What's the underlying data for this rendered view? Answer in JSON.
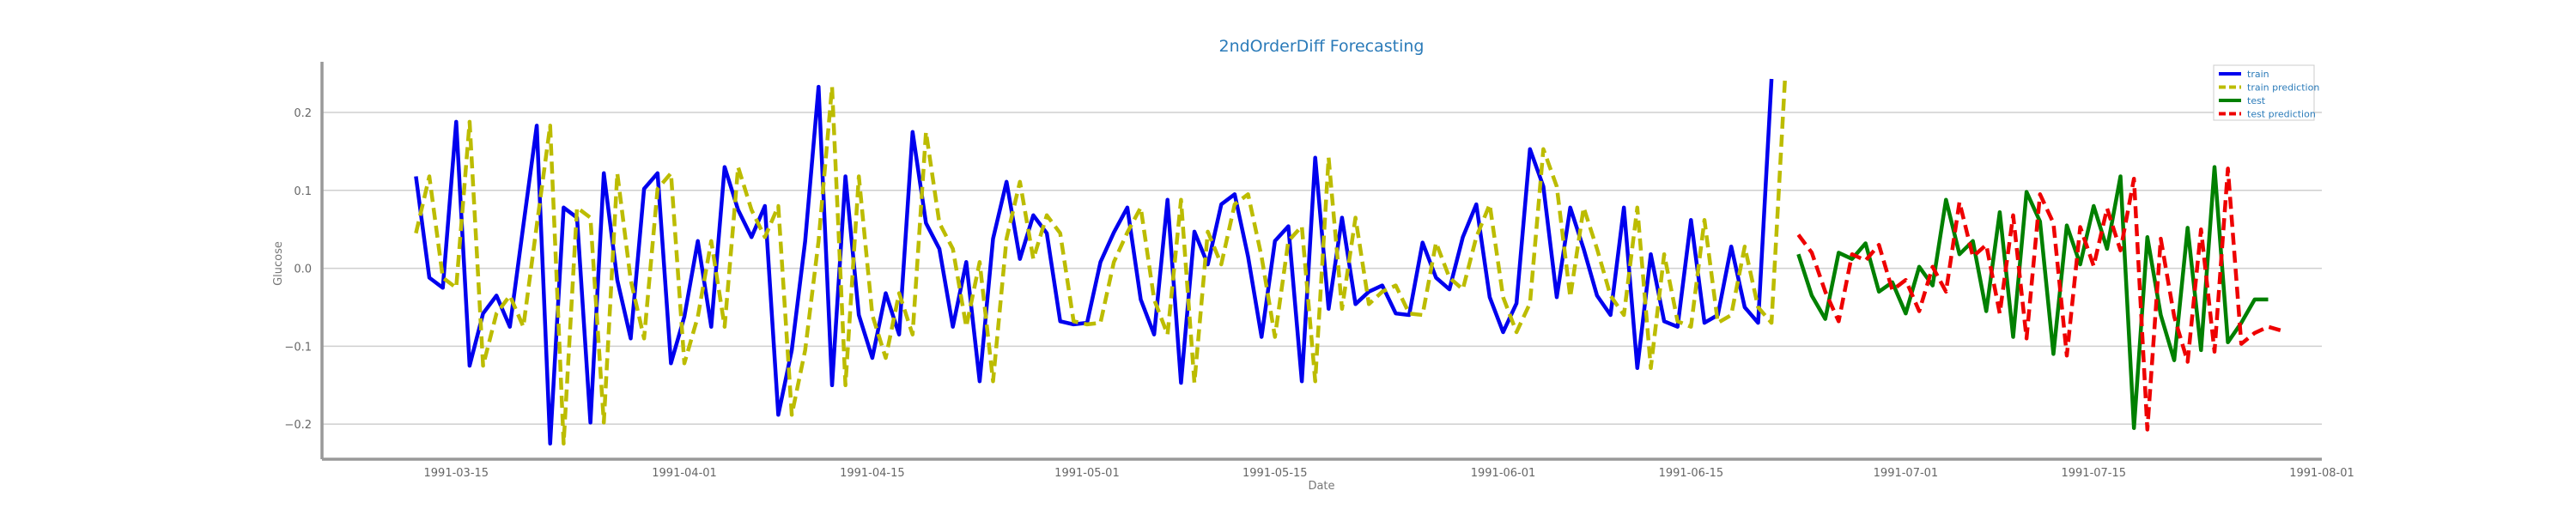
{
  "chart_data": {
    "type": "line",
    "title": "2ndOrderDiff Forecasting",
    "xlabel": "Date",
    "ylabel": "Glucose",
    "xlim": [
      "1991-03-05",
      "1991-08-01"
    ],
    "ylim": [
      -0.245,
      0.265
    ],
    "yticks": [
      -0.2,
      -0.1,
      0.0,
      0.1,
      0.2
    ],
    "ytick_labels": [
      "−0.2",
      "−0.1",
      "0.0",
      "0.1",
      "0.2"
    ],
    "xticks": [
      "1991-03-15",
      "1991-04-01",
      "1991-04-15",
      "1991-05-01",
      "1991-05-15",
      "1991-06-01",
      "1991-06-15",
      "1991-07-01",
      "1991-07-15",
      "1991-08-01"
    ],
    "grid": "horizontal",
    "legend_position": "top-right",
    "series": [
      {
        "name": "train",
        "color": "#0000ee",
        "style": "solid",
        "x": [
          "1991-03-12",
          "1991-03-13",
          "1991-03-14",
          "1991-03-15",
          "1991-03-16",
          "1991-03-17",
          "1991-03-18",
          "1991-03-19",
          "1991-03-20",
          "1991-03-21",
          "1991-03-22",
          "1991-03-23",
          "1991-03-24",
          "1991-03-25",
          "1991-03-26",
          "1991-03-27",
          "1991-03-28",
          "1991-03-29",
          "1991-03-30",
          "1991-03-31",
          "1991-04-01",
          "1991-04-02",
          "1991-04-03",
          "1991-04-04",
          "1991-04-05",
          "1991-04-06",
          "1991-04-07",
          "1991-04-08",
          "1991-04-09",
          "1991-04-10",
          "1991-04-11",
          "1991-04-12",
          "1991-04-13",
          "1991-04-14",
          "1991-04-15",
          "1991-04-16",
          "1991-04-17",
          "1991-04-18",
          "1991-04-19",
          "1991-04-20",
          "1991-04-21",
          "1991-04-22",
          "1991-04-23",
          "1991-04-24",
          "1991-04-25",
          "1991-04-26",
          "1991-04-27",
          "1991-04-28",
          "1991-04-29",
          "1991-04-30",
          "1991-05-01",
          "1991-05-02",
          "1991-05-03",
          "1991-05-04",
          "1991-05-05",
          "1991-05-06",
          "1991-05-07",
          "1991-05-08",
          "1991-05-09",
          "1991-05-10",
          "1991-05-11",
          "1991-05-12",
          "1991-05-13",
          "1991-05-14",
          "1991-05-15",
          "1991-05-16",
          "1991-05-17",
          "1991-05-18",
          "1991-05-19",
          "1991-05-20",
          "1991-05-21",
          "1991-05-22",
          "1991-05-23",
          "1991-05-24",
          "1991-05-25",
          "1991-05-26",
          "1991-05-27",
          "1991-05-28",
          "1991-05-29",
          "1991-05-30",
          "1991-05-31",
          "1991-06-01",
          "1991-06-02",
          "1991-06-03",
          "1991-06-04",
          "1991-06-05",
          "1991-06-06",
          "1991-06-07",
          "1991-06-08",
          "1991-06-09",
          "1991-06-10",
          "1991-06-11",
          "1991-06-12",
          "1991-06-13",
          "1991-06-14",
          "1991-06-15",
          "1991-06-16",
          "1991-06-17",
          "1991-06-18",
          "1991-06-19",
          "1991-06-20",
          "1991-06-21"
        ],
        "y": [
          0.118,
          -0.012,
          -0.025,
          0.188,
          -0.125,
          -0.058,
          -0.035,
          -0.075,
          0.055,
          0.183,
          -0.225,
          0.078,
          0.065,
          -0.198,
          0.122,
          -0.015,
          -0.09,
          0.102,
          0.122,
          -0.122,
          -0.062,
          0.035,
          -0.075,
          0.13,
          0.075,
          0.04,
          0.08,
          -0.188,
          -0.105,
          0.035,
          0.233,
          -0.15,
          0.118,
          -0.06,
          -0.115,
          -0.032,
          -0.085,
          0.175,
          0.058,
          0.025,
          -0.075,
          0.008,
          -0.145,
          0.038,
          0.111,
          0.012,
          0.068,
          0.045,
          -0.068,
          -0.072,
          -0.07,
          0.008,
          0.046,
          0.078,
          -0.04,
          -0.085,
          0.088,
          -0.147,
          0.047,
          0.005,
          0.082,
          0.095,
          0.015,
          -0.088,
          0.035,
          0.054,
          -0.145,
          0.142,
          -0.052,
          0.065,
          -0.046,
          -0.03,
          -0.022,
          -0.058,
          -0.06,
          0.033,
          -0.012,
          -0.027,
          0.04,
          0.082,
          -0.037,
          -0.082,
          -0.045,
          0.153,
          0.105,
          -0.037,
          0.078,
          0.025,
          -0.035,
          -0.06,
          0.078,
          -0.128,
          0.018,
          -0.068,
          -0.075,
          0.062,
          -0.07,
          -0.06,
          0.028,
          -0.05,
          -0.07,
          0.243
        ]
      },
      {
        "name": "train prediction",
        "color": "#bcbc00",
        "style": "dashed",
        "x": [
          "1991-03-12",
          "1991-03-13",
          "1991-03-14",
          "1991-03-15",
          "1991-03-16",
          "1991-03-17",
          "1991-03-18",
          "1991-03-19",
          "1991-03-20",
          "1991-03-21",
          "1991-03-22",
          "1991-03-23",
          "1991-03-24",
          "1991-03-25",
          "1991-03-26",
          "1991-03-27",
          "1991-03-28",
          "1991-03-29",
          "1991-03-30",
          "1991-03-31",
          "1991-04-01",
          "1991-04-02",
          "1991-04-03",
          "1991-04-04",
          "1991-04-05",
          "1991-04-06",
          "1991-04-07",
          "1991-04-08",
          "1991-04-09",
          "1991-04-10",
          "1991-04-11",
          "1991-04-12",
          "1991-04-13",
          "1991-04-14",
          "1991-04-15",
          "1991-04-16",
          "1991-04-17",
          "1991-04-18",
          "1991-04-19",
          "1991-04-20",
          "1991-04-21",
          "1991-04-22",
          "1991-04-23",
          "1991-04-24",
          "1991-04-25",
          "1991-04-26",
          "1991-04-27",
          "1991-04-28",
          "1991-04-29",
          "1991-04-30",
          "1991-05-01",
          "1991-05-02",
          "1991-05-03",
          "1991-05-04",
          "1991-05-05",
          "1991-05-06",
          "1991-05-07",
          "1991-05-08",
          "1991-05-09",
          "1991-05-10",
          "1991-05-11",
          "1991-05-12",
          "1991-05-13",
          "1991-05-14",
          "1991-05-15",
          "1991-05-16",
          "1991-05-17",
          "1991-05-18",
          "1991-05-19",
          "1991-05-20",
          "1991-05-21",
          "1991-05-22",
          "1991-05-23",
          "1991-05-24",
          "1991-05-25",
          "1991-05-26",
          "1991-05-27",
          "1991-05-28",
          "1991-05-29",
          "1991-05-30",
          "1991-05-31",
          "1991-06-01",
          "1991-06-02",
          "1991-06-03",
          "1991-06-04",
          "1991-06-05",
          "1991-06-06",
          "1991-06-07",
          "1991-06-08",
          "1991-06-09",
          "1991-06-10",
          "1991-06-11",
          "1991-06-12",
          "1991-06-13",
          "1991-06-14",
          "1991-06-15",
          "1991-06-16",
          "1991-06-17",
          "1991-06-18",
          "1991-06-19",
          "1991-06-20",
          "1991-06-21",
          "1991-06-22"
        ],
        "y": [
          0.045,
          0.118,
          -0.012,
          -0.025,
          0.188,
          -0.125,
          -0.058,
          -0.035,
          -0.075,
          0.055,
          0.183,
          -0.225,
          0.078,
          0.065,
          -0.198,
          0.122,
          -0.015,
          -0.09,
          0.102,
          0.122,
          -0.122,
          -0.062,
          0.035,
          -0.075,
          0.13,
          0.075,
          0.04,
          0.08,
          -0.188,
          -0.105,
          0.035,
          0.233,
          -0.15,
          0.118,
          -0.06,
          -0.115,
          -0.032,
          -0.085,
          0.175,
          0.058,
          0.025,
          -0.075,
          0.008,
          -0.145,
          0.038,
          0.111,
          0.012,
          0.068,
          0.045,
          -0.068,
          -0.072,
          -0.07,
          0.008,
          0.046,
          0.078,
          -0.04,
          -0.085,
          0.088,
          -0.147,
          0.047,
          0.005,
          0.082,
          0.095,
          0.015,
          -0.088,
          0.035,
          0.054,
          -0.145,
          0.142,
          -0.052,
          0.065,
          -0.046,
          -0.03,
          -0.022,
          -0.058,
          -0.06,
          0.033,
          -0.012,
          -0.027,
          0.04,
          0.082,
          -0.037,
          -0.082,
          -0.045,
          0.153,
          0.105,
          -0.037,
          0.078,
          0.025,
          -0.035,
          -0.06,
          0.078,
          -0.128,
          0.018,
          -0.068,
          -0.075,
          0.062,
          -0.07,
          -0.06,
          0.028,
          -0.05,
          -0.07,
          0.243
        ]
      },
      {
        "name": "test",
        "color": "#008000",
        "style": "solid",
        "x": [
          "1991-06-23",
          "1991-06-24",
          "1991-06-25",
          "1991-06-26",
          "1991-06-27",
          "1991-06-28",
          "1991-06-29",
          "1991-06-30",
          "1991-07-01",
          "1991-07-02",
          "1991-07-03",
          "1991-07-04",
          "1991-07-05",
          "1991-07-06",
          "1991-07-07",
          "1991-07-08",
          "1991-07-09",
          "1991-07-10",
          "1991-07-11",
          "1991-07-12",
          "1991-07-13",
          "1991-07-14",
          "1991-07-15",
          "1991-07-16",
          "1991-07-17",
          "1991-07-18",
          "1991-07-19",
          "1991-07-20",
          "1991-07-21",
          "1991-07-22",
          "1991-07-23",
          "1991-07-24",
          "1991-07-25",
          "1991-07-26",
          "1991-07-27",
          "1991-07-28"
        ],
        "y": [
          0.018,
          -0.035,
          -0.065,
          0.02,
          0.012,
          0.032,
          -0.03,
          -0.018,
          -0.058,
          0.002,
          -0.022,
          0.088,
          0.018,
          0.035,
          -0.055,
          0.072,
          -0.088,
          0.098,
          0.06,
          -0.11,
          0.055,
          0.005,
          0.08,
          0.025,
          0.118,
          -0.205,
          0.04,
          -0.06,
          -0.118,
          0.052,
          -0.105,
          0.13,
          -0.095,
          -0.07,
          -0.04,
          -0.04
        ]
      },
      {
        "name": "test prediction",
        "color": "#ee0000",
        "style": "dashed",
        "x": [
          "1991-06-23",
          "1991-06-24",
          "1991-06-25",
          "1991-06-26",
          "1991-06-27",
          "1991-06-28",
          "1991-06-29",
          "1991-06-30",
          "1991-07-01",
          "1991-07-02",
          "1991-07-03",
          "1991-07-04",
          "1991-07-05",
          "1991-07-06",
          "1991-07-07",
          "1991-07-08",
          "1991-07-09",
          "1991-07-10",
          "1991-07-11",
          "1991-07-12",
          "1991-07-13",
          "1991-07-14",
          "1991-07-15",
          "1991-07-16",
          "1991-07-17",
          "1991-07-18",
          "1991-07-19",
          "1991-07-20",
          "1991-07-21",
          "1991-07-22",
          "1991-07-23",
          "1991-07-24",
          "1991-07-25",
          "1991-07-26",
          "1991-07-27",
          "1991-07-28",
          "1991-07-29"
        ],
        "y": [
          0.043,
          0.02,
          -0.03,
          -0.068,
          0.018,
          0.01,
          0.03,
          -0.028,
          -0.015,
          -0.055,
          0.002,
          -0.03,
          0.085,
          0.015,
          0.03,
          -0.058,
          0.068,
          -0.09,
          0.095,
          0.058,
          -0.112,
          0.053,
          0.003,
          0.077,
          0.023,
          0.115,
          -0.207,
          0.038,
          -0.062,
          -0.12,
          0.05,
          -0.107,
          0.128,
          -0.097,
          -0.083,
          -0.075,
          -0.08
        ]
      }
    ]
  }
}
